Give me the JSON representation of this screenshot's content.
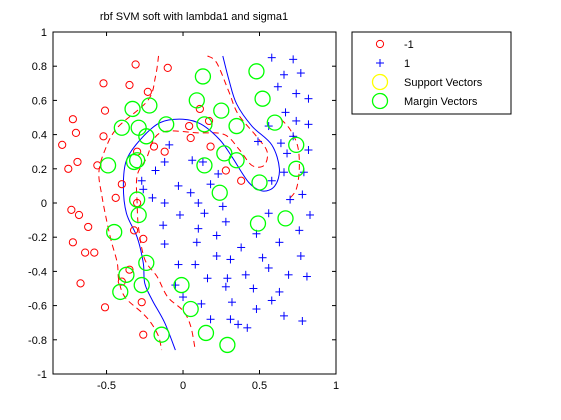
{
  "chart_data": {
    "type": "scatter",
    "title": "rbf SVM soft with lambda1 and sigma1",
    "xlabel": "",
    "ylabel": "",
    "xlim": [
      -0.85,
      1.0
    ],
    "ylim": [
      -1.0,
      1.0
    ],
    "xticks": [
      "-0.5",
      "0",
      "0.5",
      "1"
    ],
    "xtick_values": [
      -0.5,
      0,
      0.5,
      1
    ],
    "yticks": [
      "1",
      "0.8",
      "0.6",
      "0.4",
      "0.2",
      "0",
      "-0.2",
      "-0.4",
      "-0.6",
      "-0.8",
      "-1"
    ],
    "ytick_values": [
      1,
      0.8,
      0.6,
      0.4,
      0.2,
      0,
      -0.2,
      -0.4,
      -0.6,
      -0.8,
      -1
    ],
    "grid": false,
    "legend_position": "outside-top-right",
    "colors": {
      "neg": "#ff0000",
      "pos": "#0000ff",
      "support": "#ffff00",
      "margin": "#00ff00",
      "boundary": "#0000ff",
      "margin_line": "#ff0000"
    },
    "legend": [
      {
        "label": "-1",
        "marker": "circle-red"
      },
      {
        "label": "1",
        "marker": "plus-blue"
      },
      {
        "label": "Support Vectors",
        "marker": "circle-yellow"
      },
      {
        "label": "Margin Vectors",
        "marker": "circle-green"
      }
    ],
    "series": [
      {
        "name": "-1",
        "marker": "o",
        "points": [
          [
            -0.31,
            0.81
          ],
          [
            -0.1,
            0.79
          ],
          [
            -0.52,
            0.7
          ],
          [
            -0.35,
            0.69
          ],
          [
            -0.23,
            0.65
          ],
          [
            -0.72,
            0.49
          ],
          [
            -0.51,
            0.54
          ],
          [
            -0.79,
            0.34
          ],
          [
            -0.7,
            0.41
          ],
          [
            -0.52,
            0.39
          ],
          [
            -0.75,
            0.2
          ],
          [
            -0.69,
            0.24
          ],
          [
            -0.56,
            0.22
          ],
          [
            -0.73,
            -0.04
          ],
          [
            -0.68,
            -0.07
          ],
          [
            -0.62,
            -0.14
          ],
          [
            -0.72,
            -0.23
          ],
          [
            -0.64,
            -0.29
          ],
          [
            -0.58,
            -0.29
          ],
          [
            -0.67,
            -0.47
          ],
          [
            -0.51,
            -0.61
          ],
          [
            -0.27,
            -0.58
          ],
          [
            -0.26,
            -0.77
          ],
          [
            -0.4,
            -0.46
          ],
          [
            -0.35,
            -0.39
          ],
          [
            -0.26,
            -0.21
          ],
          [
            -0.32,
            -0.16
          ],
          [
            -0.3,
            0.0
          ],
          [
            -0.4,
            0.11
          ],
          [
            -0.44,
            0.03
          ],
          [
            -0.3,
            0.3
          ],
          [
            -0.19,
            0.33
          ],
          [
            -0.12,
            0.3
          ],
          [
            0.04,
            0.45
          ],
          [
            0.11,
            0.55
          ],
          [
            0.17,
            0.48
          ],
          [
            0.05,
            0.38
          ],
          [
            0.18,
            0.33
          ],
          [
            0.28,
            0.19
          ],
          [
            0.38,
            0.13
          ]
        ]
      },
      {
        "name": "1",
        "marker": "+",
        "points": [
          [
            0.58,
            0.85
          ],
          [
            0.72,
            0.84
          ],
          [
            0.66,
            0.75
          ],
          [
            0.77,
            0.76
          ],
          [
            0.62,
            0.68
          ],
          [
            0.74,
            0.64
          ],
          [
            0.82,
            0.61
          ],
          [
            0.67,
            0.53
          ],
          [
            0.74,
            0.48
          ],
          [
            0.82,
            0.46
          ],
          [
            0.72,
            0.39
          ],
          [
            0.56,
            0.45
          ],
          [
            0.49,
            0.36
          ],
          [
            0.64,
            0.35
          ],
          [
            0.82,
            0.31
          ],
          [
            0.68,
            0.29
          ],
          [
            0.66,
            0.18
          ],
          [
            0.79,
            0.18
          ],
          [
            0.58,
            0.13
          ],
          [
            0.78,
            0.05
          ],
          [
            0.7,
            0.02
          ],
          [
            0.83,
            -0.07
          ],
          [
            0.56,
            -0.06
          ],
          [
            0.76,
            -0.16
          ],
          [
            0.63,
            -0.23
          ],
          [
            0.48,
            -0.18
          ],
          [
            0.38,
            -0.26
          ],
          [
            0.52,
            -0.32
          ],
          [
            0.31,
            -0.33
          ],
          [
            0.77,
            -0.31
          ],
          [
            0.56,
            -0.38
          ],
          [
            0.41,
            -0.42
          ],
          [
            0.69,
            -0.42
          ],
          [
            0.81,
            -0.43
          ],
          [
            0.29,
            -0.44
          ],
          [
            0.28,
            -0.49
          ],
          [
            0.16,
            -0.44
          ],
          [
            0.63,
            -0.52
          ],
          [
            0.46,
            -0.5
          ],
          [
            0.58,
            -0.57
          ],
          [
            0.32,
            -0.58
          ],
          [
            0.48,
            -0.62
          ],
          [
            0.31,
            -0.68
          ],
          [
            0.66,
            -0.66
          ],
          [
            0.78,
            -0.69
          ],
          [
            0.36,
            -0.71
          ],
          [
            0.42,
            -0.73
          ],
          [
            0.18,
            -0.68
          ],
          [
            0.12,
            -0.59
          ],
          [
            0.0,
            -0.55
          ],
          [
            -0.05,
            -0.48
          ],
          [
            -0.03,
            -0.36
          ],
          [
            0.08,
            -0.36
          ],
          [
            0.22,
            -0.31
          ],
          [
            -0.12,
            -0.24
          ],
          [
            0.09,
            -0.23
          ],
          [
            0.22,
            -0.19
          ],
          [
            -0.13,
            -0.13
          ],
          [
            0.1,
            -0.15
          ],
          [
            0.28,
            -0.11
          ],
          [
            -0.02,
            -0.07
          ],
          [
            0.14,
            -0.06
          ],
          [
            0.26,
            -0.02
          ],
          [
            -0.12,
            0.0
          ],
          [
            0.1,
            0.0
          ],
          [
            0.05,
            0.06
          ],
          [
            -0.03,
            0.1
          ],
          [
            0.18,
            0.11
          ],
          [
            0.23,
            0.17
          ],
          [
            0.06,
            0.25
          ],
          [
            -0.18,
            0.19
          ],
          [
            -0.12,
            0.24
          ],
          [
            0.13,
            0.24
          ],
          [
            -0.09,
            0.34
          ],
          [
            -0.27,
            0.13
          ],
          [
            -0.26,
            0.08
          ],
          [
            -0.2,
            0.03
          ]
        ]
      },
      {
        "name": "Margin Vectors",
        "marker": "o-green",
        "points": [
          [
            0.13,
            0.74
          ],
          [
            0.48,
            0.77
          ],
          [
            0.52,
            0.61
          ],
          [
            0.6,
            0.47
          ],
          [
            0.74,
            0.34
          ],
          [
            0.74,
            0.2
          ],
          [
            0.5,
            0.12
          ],
          [
            0.35,
            0.25
          ],
          [
            0.24,
            0.06
          ],
          [
            0.27,
            0.29
          ],
          [
            0.14,
            0.46
          ],
          [
            0.14,
            0.22
          ],
          [
            0.09,
            0.6
          ],
          [
            0.35,
            0.45
          ],
          [
            0.25,
            0.54
          ],
          [
            -0.29,
            0.44
          ],
          [
            -0.33,
            0.55
          ],
          [
            -0.4,
            0.44
          ],
          [
            -0.22,
            0.57
          ],
          [
            -0.24,
            0.39
          ],
          [
            -0.11,
            0.46
          ],
          [
            -0.3,
            0.25
          ],
          [
            -0.49,
            0.22
          ],
          [
            -0.32,
            0.24
          ],
          [
            -0.3,
            0.02
          ],
          [
            -0.29,
            -0.07
          ],
          [
            -0.45,
            -0.17
          ],
          [
            -0.24,
            -0.35
          ],
          [
            -0.37,
            -0.42
          ],
          [
            -0.27,
            -0.48
          ],
          [
            -0.01,
            -0.48
          ],
          [
            -0.41,
            -0.52
          ],
          [
            -0.14,
            -0.77
          ],
          [
            0.05,
            -0.62
          ],
          [
            0.15,
            -0.76
          ],
          [
            0.29,
            -0.83
          ],
          [
            0.49,
            -0.12
          ],
          [
            0.67,
            -0.09
          ]
        ]
      }
    ],
    "decision_boundary": [
      [
        0.26,
        0.86
      ],
      [
        0.3,
        0.72
      ],
      [
        0.35,
        0.58
      ],
      [
        0.45,
        0.45
      ],
      [
        0.58,
        0.34
      ],
      [
        0.63,
        0.2
      ],
      [
        0.6,
        0.1
      ],
      [
        0.52,
        0.07
      ],
      [
        0.43,
        0.12
      ],
      [
        0.32,
        0.27
      ],
      [
        0.24,
        0.37
      ],
      [
        0.12,
        0.46
      ],
      [
        0.0,
        0.49
      ],
      [
        -0.15,
        0.47
      ],
      [
        -0.28,
        0.37
      ],
      [
        -0.37,
        0.25
      ],
      [
        -0.39,
        0.1
      ],
      [
        -0.37,
        -0.06
      ],
      [
        -0.3,
        -0.2
      ],
      [
        -0.26,
        -0.35
      ],
      [
        -0.25,
        -0.47
      ],
      [
        -0.2,
        -0.57
      ],
      [
        -0.12,
        -0.7
      ],
      [
        -0.05,
        -0.86
      ]
    ],
    "margin_lines": [
      [
        [
          -0.16,
          0.86
        ],
        [
          -0.18,
          0.74
        ],
        [
          -0.23,
          0.6
        ],
        [
          -0.43,
          0.44
        ],
        [
          -0.51,
          0.31
        ],
        [
          -0.55,
          0.18
        ],
        [
          -0.53,
          0.04
        ],
        [
          -0.5,
          -0.1
        ],
        [
          -0.47,
          -0.22
        ],
        [
          -0.43,
          -0.35
        ],
        [
          -0.42,
          -0.45
        ],
        [
          -0.38,
          -0.55
        ],
        [
          -0.27,
          -0.64
        ],
        [
          -0.21,
          -0.7
        ],
        [
          -0.16,
          -0.78
        ],
        [
          -0.14,
          -0.86
        ]
      ],
      [
        [
          0.16,
          0.86
        ],
        [
          0.22,
          0.82
        ],
        [
          0.3,
          0.65
        ],
        [
          0.36,
          0.52
        ],
        [
          0.48,
          0.39
        ],
        [
          0.55,
          0.3
        ],
        [
          0.53,
          0.22
        ],
        [
          0.45,
          0.22
        ],
        [
          0.37,
          0.31
        ],
        [
          0.27,
          0.4
        ],
        [
          0.1,
          0.41
        ],
        [
          -0.15,
          0.41
        ],
        [
          -0.24,
          0.26
        ],
        [
          -0.3,
          0.16
        ],
        [
          -0.3,
          0.0
        ],
        [
          -0.29,
          -0.15
        ],
        [
          -0.25,
          -0.33
        ],
        [
          -0.17,
          -0.43
        ],
        [
          -0.1,
          -0.55
        ],
        [
          0.0,
          -0.63
        ],
        [
          0.05,
          -0.72
        ],
        [
          0.08,
          -0.86
        ]
      ],
      [
        [
          0.64,
          0.49
        ],
        [
          0.7,
          0.43
        ],
        [
          0.75,
          0.33
        ],
        [
          0.76,
          0.2
        ],
        [
          0.74,
          0.08
        ],
        [
          0.69,
          0.02
        ]
      ]
    ]
  }
}
